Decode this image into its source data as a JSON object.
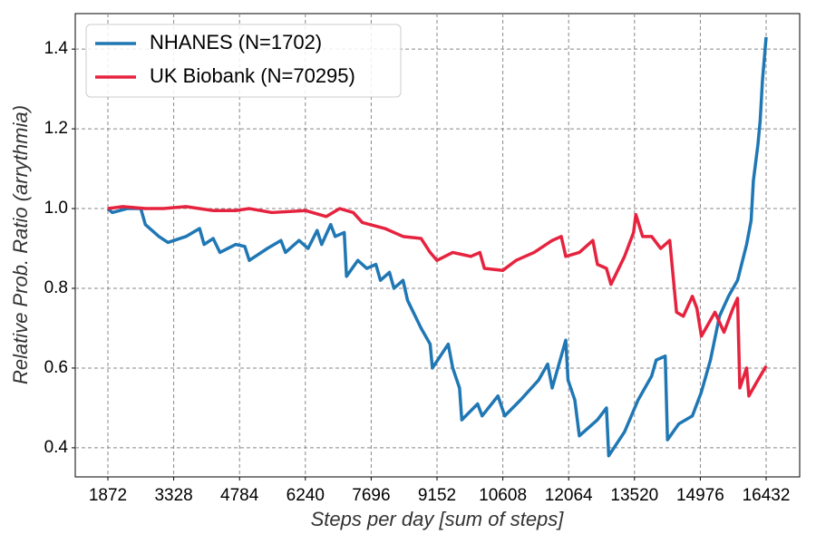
{
  "chart_data": {
    "type": "line",
    "xlabel": "Steps per day [sum of steps]",
    "ylabel": "Relative Prob. Ratio (arrythmia)",
    "xlim": [
      1150,
      17174
    ],
    "ylim": [
      0.327,
      1.489
    ],
    "xticks": [
      1872,
      3328,
      4784,
      6240,
      7696,
      9152,
      10608,
      12064,
      13520,
      14976,
      16432
    ],
    "yticks": [
      0.4,
      0.6,
      0.8,
      {
        "value": 1.0,
        "label": "1.0"
      },
      1.2,
      1.4
    ],
    "grid": true,
    "legend": "upper left",
    "series": [
      {
        "name": "NHANES (N=1702)",
        "color": "#1f77b4",
        "x": [
          1872,
          1970,
          2300,
          2600,
          2700,
          3000,
          3200,
          3600,
          3900,
          4000,
          4200,
          4350,
          4700,
          4900,
          5000,
          5400,
          5700,
          5800,
          6100,
          6300,
          6500,
          6600,
          6800,
          6900,
          7100,
          7150,
          7400,
          7600,
          7800,
          7900,
          8100,
          8200,
          8400,
          8500,
          8800,
          9000,
          9050,
          9400,
          9500,
          9650,
          9700,
          10050,
          10150,
          10500,
          10650,
          11000,
          11400,
          11600,
          11700,
          12000,
          12050,
          12200,
          12300,
          12700,
          12900,
          12950,
          13300,
          13600,
          13900,
          14000,
          14200,
          14250,
          14500,
          14800,
          15000,
          15200,
          15400,
          15600,
          15800,
          16000,
          16100,
          16150,
          16250,
          16300,
          16350,
          16432
        ],
        "values": [
          1.0,
          0.99,
          1.0,
          1.0,
          0.96,
          0.93,
          0.915,
          0.93,
          0.95,
          0.91,
          0.925,
          0.89,
          0.91,
          0.905,
          0.87,
          0.9,
          0.92,
          0.89,
          0.92,
          0.9,
          0.945,
          0.91,
          0.96,
          0.93,
          0.94,
          0.83,
          0.87,
          0.85,
          0.86,
          0.82,
          0.84,
          0.8,
          0.82,
          0.77,
          0.7,
          0.66,
          0.6,
          0.66,
          0.6,
          0.55,
          0.47,
          0.51,
          0.48,
          0.53,
          0.48,
          0.52,
          0.57,
          0.61,
          0.55,
          0.67,
          0.57,
          0.52,
          0.43,
          0.47,
          0.5,
          0.38,
          0.44,
          0.52,
          0.58,
          0.62,
          0.63,
          0.42,
          0.46,
          0.48,
          0.54,
          0.62,
          0.73,
          0.78,
          0.82,
          0.91,
          0.97,
          1.07,
          1.16,
          1.22,
          1.32,
          1.43
        ]
      },
      {
        "name": "UK Biobank (N=70295)",
        "color": "#e6233f",
        "x": [
          1872,
          2200,
          2700,
          3100,
          3600,
          4200,
          4700,
          5000,
          5500,
          6240,
          6700,
          7000,
          7300,
          7500,
          8000,
          8400,
          8800,
          9000,
          9152,
          9500,
          9900,
          10100,
          10200,
          10608,
          10900,
          11300,
          11700,
          11900,
          12000,
          12300,
          12500,
          12600,
          12700,
          12900,
          13000,
          13300,
          13500,
          13550,
          13700,
          13900,
          14100,
          14300,
          14450,
          14600,
          14800,
          14900,
          15000,
          15300,
          15500,
          15700,
          15800,
          15850,
          16000,
          16050,
          16200,
          16432
        ],
        "values": [
          1.0,
          1.005,
          1.0,
          1.0,
          1.005,
          0.995,
          0.995,
          1.0,
          0.99,
          0.995,
          0.98,
          1.0,
          0.99,
          0.965,
          0.95,
          0.93,
          0.925,
          0.89,
          0.87,
          0.89,
          0.88,
          0.89,
          0.85,
          0.845,
          0.87,
          0.89,
          0.92,
          0.93,
          0.88,
          0.89,
          0.91,
          0.92,
          0.86,
          0.85,
          0.81,
          0.88,
          0.94,
          0.985,
          0.93,
          0.93,
          0.9,
          0.92,
          0.74,
          0.73,
          0.78,
          0.75,
          0.68,
          0.74,
          0.69,
          0.75,
          0.775,
          0.55,
          0.6,
          0.53,
          0.56,
          0.605
        ]
      }
    ]
  }
}
